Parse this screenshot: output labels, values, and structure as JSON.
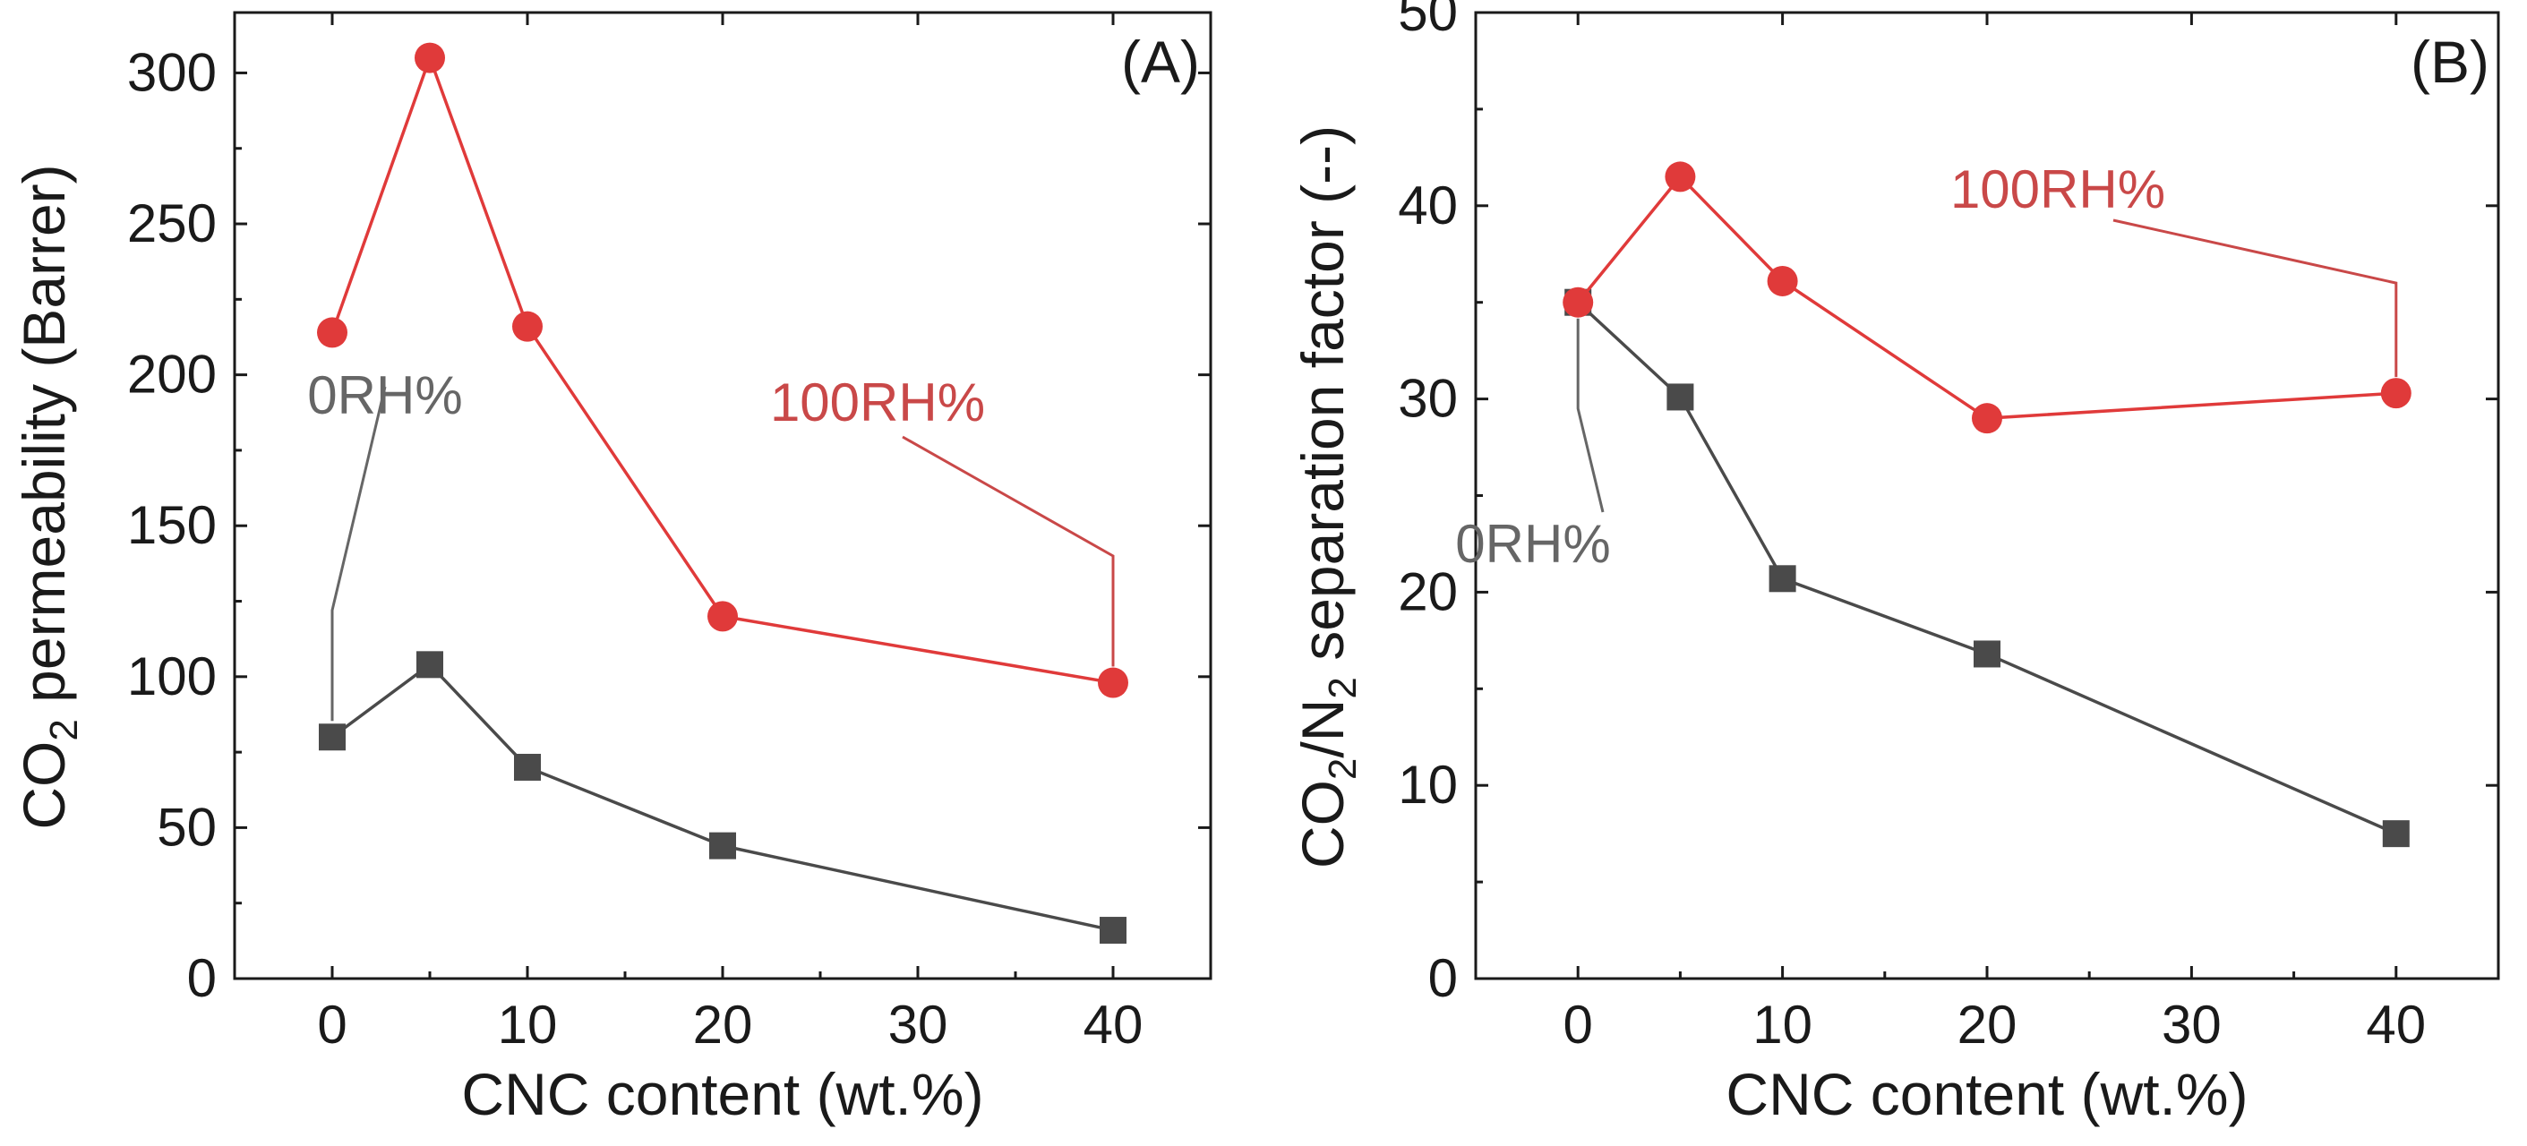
{
  "chart_data": [
    {
      "type": "line",
      "panel_label": "(A)",
      "xlabel": "CNC content (wt.%)",
      "ylabel_parts": [
        "CO",
        "2",
        " permeability (Barrer)"
      ],
      "xlim": [
        -5,
        45
      ],
      "ylim": [
        0,
        320
      ],
      "xticks": [
        0,
        10,
        20,
        30,
        40
      ],
      "yticks": [
        0,
        50,
        100,
        150,
        200,
        250,
        300
      ],
      "series": [
        {
          "name": "0RH%",
          "color": "#4a4a4a",
          "marker": "square",
          "x": [
            0,
            5,
            10,
            20,
            40
          ],
          "y": [
            80,
            104,
            70,
            44,
            16
          ]
        },
        {
          "name": "100RH%",
          "color": "#e03a3a",
          "marker": "circle",
          "x": [
            0,
            5,
            10,
            20,
            40
          ],
          "y": [
            214,
            305,
            216,
            120,
            98
          ]
        }
      ]
    },
    {
      "type": "line",
      "panel_label": "(B)",
      "xlabel": "CNC content (wt.%)",
      "ylabel_parts": [
        "CO",
        "2",
        "/N",
        "2",
        " separation factor (--)"
      ],
      "xlim": [
        -5,
        45
      ],
      "ylim": [
        0,
        50
      ],
      "xticks": [
        0,
        10,
        20,
        30,
        40
      ],
      "yticks": [
        0,
        10,
        20,
        30,
        40,
        50
      ],
      "series": [
        {
          "name": "0RH%",
          "color": "#4a4a4a",
          "marker": "square",
          "x": [
            0,
            5,
            10,
            20,
            40
          ],
          "y": [
            35,
            30.1,
            20.7,
            16.8,
            7.5
          ]
        },
        {
          "name": "100RH%",
          "color": "#e03a3a",
          "marker": "circle",
          "x": [
            0,
            5,
            10,
            20,
            40
          ],
          "y": [
            35,
            41.5,
            36.1,
            29,
            30.3
          ]
        }
      ]
    }
  ]
}
